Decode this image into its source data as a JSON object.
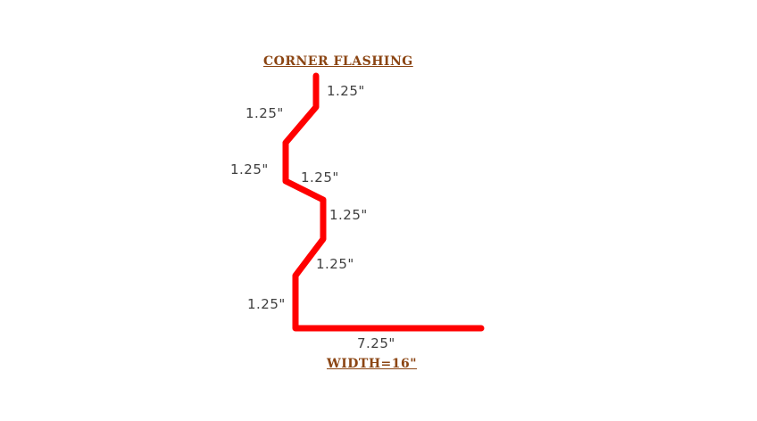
{
  "diagram": {
    "title": "CORNER FLASHING",
    "width_note": "WIDTH=16\"",
    "segment_labels": [
      "1.25\"",
      "1.25\"",
      "1.25\"",
      "1.25\"",
      "1.25\"",
      "1.25\"",
      "1.25\"",
      "7.25\""
    ],
    "colors": {
      "flashing": "#ff0000",
      "title": "#8b4513",
      "dimension_text": "#404040"
    }
  }
}
